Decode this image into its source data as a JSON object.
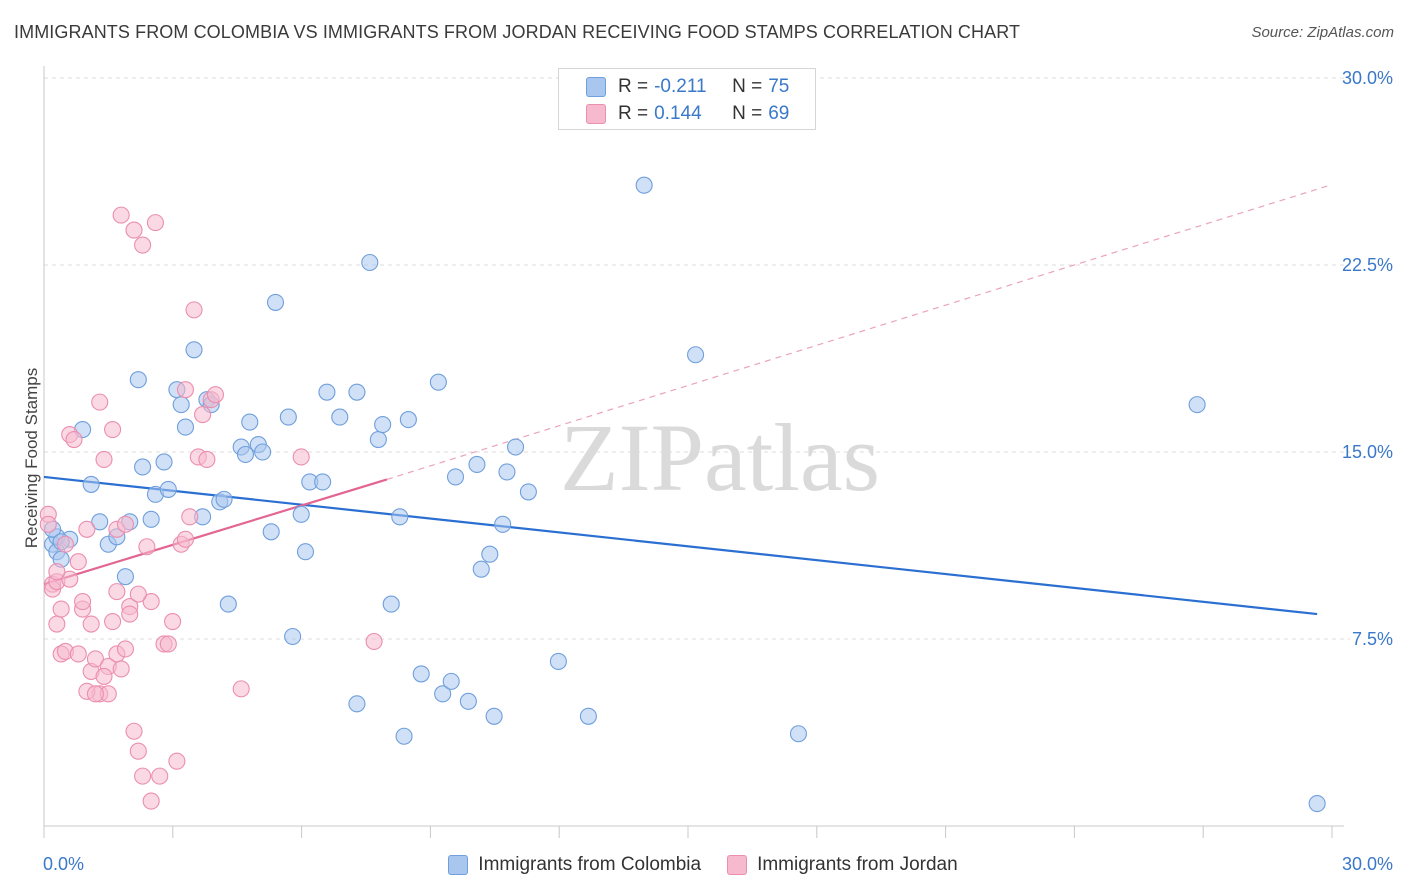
{
  "chart_data": {
    "type": "scatter",
    "title": "IMMIGRANTS FROM COLOMBIA VS IMMIGRANTS FROM JORDAN RECEIVING FOOD STAMPS CORRELATION CHART",
    "source": "Source: ZipAtlas.com",
    "xlabel": "",
    "ylabel": "Receiving Food Stamps",
    "xlim": [
      0,
      30
    ],
    "ylim": [
      0,
      30
    ],
    "x_tick_labels": [
      "0.0%",
      "30.0%"
    ],
    "y_ticks": [
      7.5,
      15.0,
      22.5,
      30.0
    ],
    "y_tick_labels": [
      "7.5%",
      "15.0%",
      "22.5%",
      "30.0%"
    ],
    "watermark": "ZIPatlas",
    "stats": [
      {
        "r_label": "R =",
        "r_value": "-0.211",
        "n_label": "N =",
        "n_value": "75"
      },
      {
        "r_label": "R =",
        "r_value": "0.144",
        "n_label": "N =",
        "n_value": "69"
      }
    ],
    "series": [
      {
        "name": "Immigrants from Colombia",
        "color": "#a9c6ef",
        "edge": "#6f9fdc",
        "trend": {
          "x": [
            0,
            29.7
          ],
          "y": [
            14.0,
            8.5
          ],
          "color": "#2a6fd1",
          "style": "solid"
        },
        "points": [
          [
            0.2,
            11.3
          ],
          [
            0.3,
            11.0
          ],
          [
            0.4,
            10.7
          ],
          [
            0.3,
            11.6
          ],
          [
            0.6,
            11.5
          ],
          [
            0.9,
            15.9
          ],
          [
            1.1,
            13.7
          ],
          [
            1.3,
            12.2
          ],
          [
            1.5,
            11.3
          ],
          [
            1.7,
            11.6
          ],
          [
            1.9,
            10.0
          ],
          [
            2.0,
            12.2
          ],
          [
            2.2,
            17.9
          ],
          [
            2.3,
            14.4
          ],
          [
            2.5,
            12.3
          ],
          [
            2.6,
            13.3
          ],
          [
            2.8,
            14.6
          ],
          [
            2.9,
            13.5
          ],
          [
            3.1,
            17.5
          ],
          [
            3.2,
            16.9
          ],
          [
            3.3,
            16.0
          ],
          [
            3.5,
            19.1
          ],
          [
            3.7,
            12.4
          ],
          [
            3.8,
            17.1
          ],
          [
            3.9,
            16.9
          ],
          [
            4.1,
            13.0
          ],
          [
            4.2,
            13.1
          ],
          [
            4.3,
            8.9
          ],
          [
            4.6,
            15.2
          ],
          [
            4.7,
            14.9
          ],
          [
            4.8,
            16.2
          ],
          [
            5.0,
            15.3
          ],
          [
            5.1,
            15.0
          ],
          [
            5.3,
            11.8
          ],
          [
            5.4,
            21.0
          ],
          [
            5.7,
            16.4
          ],
          [
            5.8,
            7.6
          ],
          [
            6.0,
            12.5
          ],
          [
            6.1,
            11.0
          ],
          [
            6.2,
            13.8
          ],
          [
            6.5,
            13.8
          ],
          [
            6.6,
            17.4
          ],
          [
            6.9,
            16.4
          ],
          [
            7.3,
            17.4
          ],
          [
            7.3,
            4.9
          ],
          [
            7.6,
            22.6
          ],
          [
            7.8,
            15.5
          ],
          [
            7.9,
            16.1
          ],
          [
            8.1,
            8.9
          ],
          [
            8.3,
            12.4
          ],
          [
            8.4,
            3.6
          ],
          [
            8.5,
            16.3
          ],
          [
            8.8,
            6.1
          ],
          [
            9.2,
            17.8
          ],
          [
            9.3,
            5.3
          ],
          [
            9.5,
            5.8
          ],
          [
            9.6,
            14.0
          ],
          [
            9.9,
            5.0
          ],
          [
            10.1,
            14.5
          ],
          [
            10.2,
            10.3
          ],
          [
            10.4,
            10.9
          ],
          [
            10.5,
            4.4
          ],
          [
            10.7,
            12.1
          ],
          [
            10.8,
            14.2
          ],
          [
            11.0,
            15.2
          ],
          [
            11.3,
            13.4
          ],
          [
            12.0,
            6.6
          ],
          [
            12.7,
            4.4
          ],
          [
            14.0,
            25.7
          ],
          [
            15.2,
            18.9
          ],
          [
            17.6,
            3.7
          ],
          [
            26.9,
            16.9
          ],
          [
            29.7,
            0.9
          ],
          [
            0.2,
            11.9
          ],
          [
            0.4,
            11.4
          ]
        ]
      },
      {
        "name": "Immigrants from Jordan",
        "color": "#f6b9cd",
        "edge": "#eb8eaf",
        "trend": {
          "x": [
            0,
            8.0
          ],
          "y": [
            9.7,
            13.9
          ],
          "color": "#e26592",
          "style": "solid"
        },
        "trend_ext": {
          "x": [
            8.0,
            30.0
          ],
          "y": [
            13.9,
            25.7
          ],
          "color": "#eaa3bd",
          "style": "dashed"
        },
        "points": [
          [
            0.1,
            12.5
          ],
          [
            0.1,
            12.1
          ],
          [
            0.2,
            9.7
          ],
          [
            0.2,
            9.5
          ],
          [
            0.3,
            9.8
          ],
          [
            0.3,
            8.1
          ],
          [
            0.4,
            8.7
          ],
          [
            0.4,
            6.9
          ],
          [
            0.5,
            11.3
          ],
          [
            0.6,
            9.9
          ],
          [
            0.6,
            15.7
          ],
          [
            0.7,
            15.5
          ],
          [
            0.8,
            10.6
          ],
          [
            0.9,
            8.7
          ],
          [
            0.9,
            9.0
          ],
          [
            1.0,
            11.9
          ],
          [
            1.1,
            8.1
          ],
          [
            1.1,
            6.2
          ],
          [
            1.2,
            6.7
          ],
          [
            1.3,
            5.3
          ],
          [
            1.3,
            17.0
          ],
          [
            1.4,
            14.7
          ],
          [
            1.5,
            5.3
          ],
          [
            1.5,
            6.4
          ],
          [
            1.6,
            15.9
          ],
          [
            1.7,
            11.9
          ],
          [
            1.7,
            9.4
          ],
          [
            1.7,
            6.9
          ],
          [
            1.8,
            24.5
          ],
          [
            1.8,
            6.3
          ],
          [
            1.9,
            12.1
          ],
          [
            2.0,
            8.8
          ],
          [
            2.0,
            8.5
          ],
          [
            2.1,
            23.9
          ],
          [
            2.1,
            3.8
          ],
          [
            2.2,
            3.0
          ],
          [
            2.3,
            23.3
          ],
          [
            2.3,
            2.0
          ],
          [
            2.4,
            11.2
          ],
          [
            2.5,
            9.0
          ],
          [
            2.5,
            1.0
          ],
          [
            2.6,
            24.2
          ],
          [
            2.7,
            2.0
          ],
          [
            2.8,
            7.3
          ],
          [
            2.9,
            7.3
          ],
          [
            3.0,
            8.2
          ],
          [
            3.1,
            2.6
          ],
          [
            3.2,
            11.3
          ],
          [
            3.3,
            11.5
          ],
          [
            3.3,
            17.5
          ],
          [
            3.4,
            12.4
          ],
          [
            3.5,
            20.7
          ],
          [
            3.6,
            14.8
          ],
          [
            3.7,
            16.5
          ],
          [
            3.8,
            14.7
          ],
          [
            3.9,
            17.1
          ],
          [
            4.0,
            17.3
          ],
          [
            4.6,
            5.5
          ],
          [
            6.0,
            14.8
          ],
          [
            7.7,
            7.4
          ],
          [
            0.3,
            10.2
          ],
          [
            0.5,
            7.0
          ],
          [
            0.8,
            6.9
          ],
          [
            1.0,
            5.4
          ],
          [
            1.2,
            5.3
          ],
          [
            1.4,
            6.0
          ],
          [
            1.6,
            8.2
          ],
          [
            1.9,
            7.1
          ],
          [
            2.2,
            9.3
          ]
        ]
      }
    ]
  }
}
